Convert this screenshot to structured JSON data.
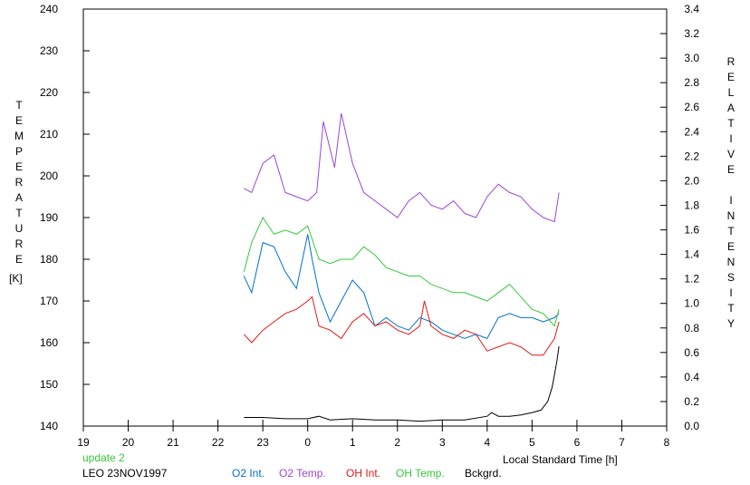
{
  "chart_data": {
    "type": "line",
    "left_axis_label_letters": [
      "T",
      "E",
      "M",
      "P",
      "E",
      "R",
      "A",
      "T",
      "U",
      "R",
      "E"
    ],
    "left_axis_unit": "[K]",
    "right_axis_label_letters": [
      "R",
      "E",
      "L",
      "A",
      "T",
      "I",
      "V",
      "E",
      "",
      "I",
      "N",
      "T",
      "E",
      "N",
      "S",
      "I",
      "T",
      "Y"
    ],
    "xlabel": "Local Standard Time [h]",
    "x_ticks": [
      "19",
      "20",
      "21",
      "22",
      "23",
      "0",
      "1",
      "2",
      "3",
      "4",
      "5",
      "6",
      "7",
      "8"
    ],
    "xlim": [
      19,
      32
    ],
    "yleft_ticks": [
      "140",
      "150",
      "160",
      "170",
      "180",
      "190",
      "200",
      "210",
      "220",
      "230",
      "240"
    ],
    "yleft_lim": [
      140,
      240
    ],
    "yright_ticks": [
      "0.0",
      "0.2",
      "0.4",
      "0.6",
      "0.8",
      "1.0",
      "1.2",
      "1.4",
      "1.6",
      "1.8",
      "2.0",
      "2.2",
      "2.4",
      "2.6",
      "2.8",
      "3.0",
      "3.2",
      "3.4"
    ],
    "yright_lim": [
      0,
      3.4
    ],
    "grid": false,
    "update_note": "update 2",
    "station_label": "LEO 23NOV1997",
    "series": [
      {
        "name": "O2 Int.",
        "axis": "left",
        "color": "#0070d0",
        "x": [
          22.58,
          22.75,
          23.0,
          23.25,
          23.5,
          23.75,
          24.0,
          24.1,
          24.25,
          24.5,
          24.75,
          25.0,
          25.25,
          25.5,
          25.75,
          26.0,
          26.25,
          26.5,
          26.75,
          27.0,
          27.25,
          27.5,
          27.75,
          28.0,
          28.25,
          28.5,
          28.75,
          29.0,
          29.25,
          29.5,
          29.6
        ],
        "y": [
          176,
          172,
          184,
          183,
          177,
          173,
          186,
          180,
          172,
          165,
          170,
          175,
          172,
          164,
          166,
          164,
          163,
          166,
          165,
          163,
          162,
          161,
          162,
          161,
          166,
          167,
          166,
          166,
          165,
          166,
          167
        ]
      },
      {
        "name": "O2 Temp.",
        "axis": "left",
        "color": "#9a45d6",
        "x": [
          22.58,
          22.75,
          23.0,
          23.25,
          23.5,
          23.75,
          24.0,
          24.2,
          24.35,
          24.6,
          24.75,
          25.0,
          25.25,
          25.5,
          25.75,
          26.0,
          26.25,
          26.5,
          26.75,
          27.0,
          27.25,
          27.5,
          27.75,
          28.0,
          28.25,
          28.5,
          28.75,
          29.0,
          29.25,
          29.5,
          29.6
        ],
        "y": [
          197,
          196,
          203,
          205,
          196,
          195,
          194,
          196,
          213,
          202,
          215,
          203,
          196,
          194,
          192,
          190,
          194,
          196,
          193,
          192,
          194,
          191,
          190,
          195,
          198,
          196,
          195,
          192,
          190,
          189,
          196
        ]
      },
      {
        "name": "OH Int.",
        "axis": "left",
        "color": "#e01818",
        "x": [
          22.58,
          22.75,
          23.0,
          23.25,
          23.5,
          23.75,
          24.0,
          24.1,
          24.25,
          24.5,
          24.75,
          25.0,
          25.25,
          25.5,
          25.75,
          26.0,
          26.25,
          26.5,
          26.6,
          26.75,
          27.0,
          27.25,
          27.5,
          27.75,
          28.0,
          28.25,
          28.5,
          28.75,
          29.0,
          29.25,
          29.5,
          29.6
        ],
        "y": [
          162,
          160,
          163,
          165,
          167,
          168,
          170,
          171,
          164,
          163,
          161,
          165,
          167,
          164,
          165,
          163,
          162,
          164,
          170,
          164,
          162,
          161,
          163,
          162,
          158,
          159,
          160,
          159,
          157,
          157,
          161,
          165
        ]
      },
      {
        "name": "OH Temp.",
        "axis": "left",
        "color": "#36c83a",
        "x": [
          22.58,
          22.75,
          23.0,
          23.25,
          23.5,
          23.75,
          24.0,
          24.25,
          24.5,
          24.75,
          25.0,
          25.25,
          25.5,
          25.75,
          26.0,
          26.25,
          26.5,
          26.75,
          27.0,
          27.25,
          27.5,
          27.75,
          28.0,
          28.25,
          28.5,
          28.75,
          29.0,
          29.25,
          29.5,
          29.6
        ],
        "y": [
          177,
          184,
          190,
          186,
          187,
          186,
          188,
          180,
          179,
          180,
          180,
          183,
          181,
          178,
          177,
          176,
          176,
          174,
          173,
          172,
          172,
          171,
          170,
          172,
          174,
          171,
          168,
          167,
          164,
          168
        ]
      },
      {
        "name": "Bckgrd.",
        "axis": "right",
        "color": "#000000",
        "x": [
          22.58,
          23.0,
          23.5,
          24.0,
          24.25,
          24.5,
          25.0,
          25.5,
          26.0,
          26.5,
          27.0,
          27.5,
          28.0,
          28.1,
          28.25,
          28.5,
          28.75,
          29.0,
          29.2,
          29.35,
          29.45,
          29.55,
          29.6
        ],
        "y": [
          0.07,
          0.07,
          0.06,
          0.06,
          0.08,
          0.05,
          0.06,
          0.05,
          0.05,
          0.04,
          0.05,
          0.05,
          0.08,
          0.11,
          0.08,
          0.08,
          0.09,
          0.11,
          0.13,
          0.2,
          0.32,
          0.52,
          0.65
        ]
      }
    ]
  }
}
